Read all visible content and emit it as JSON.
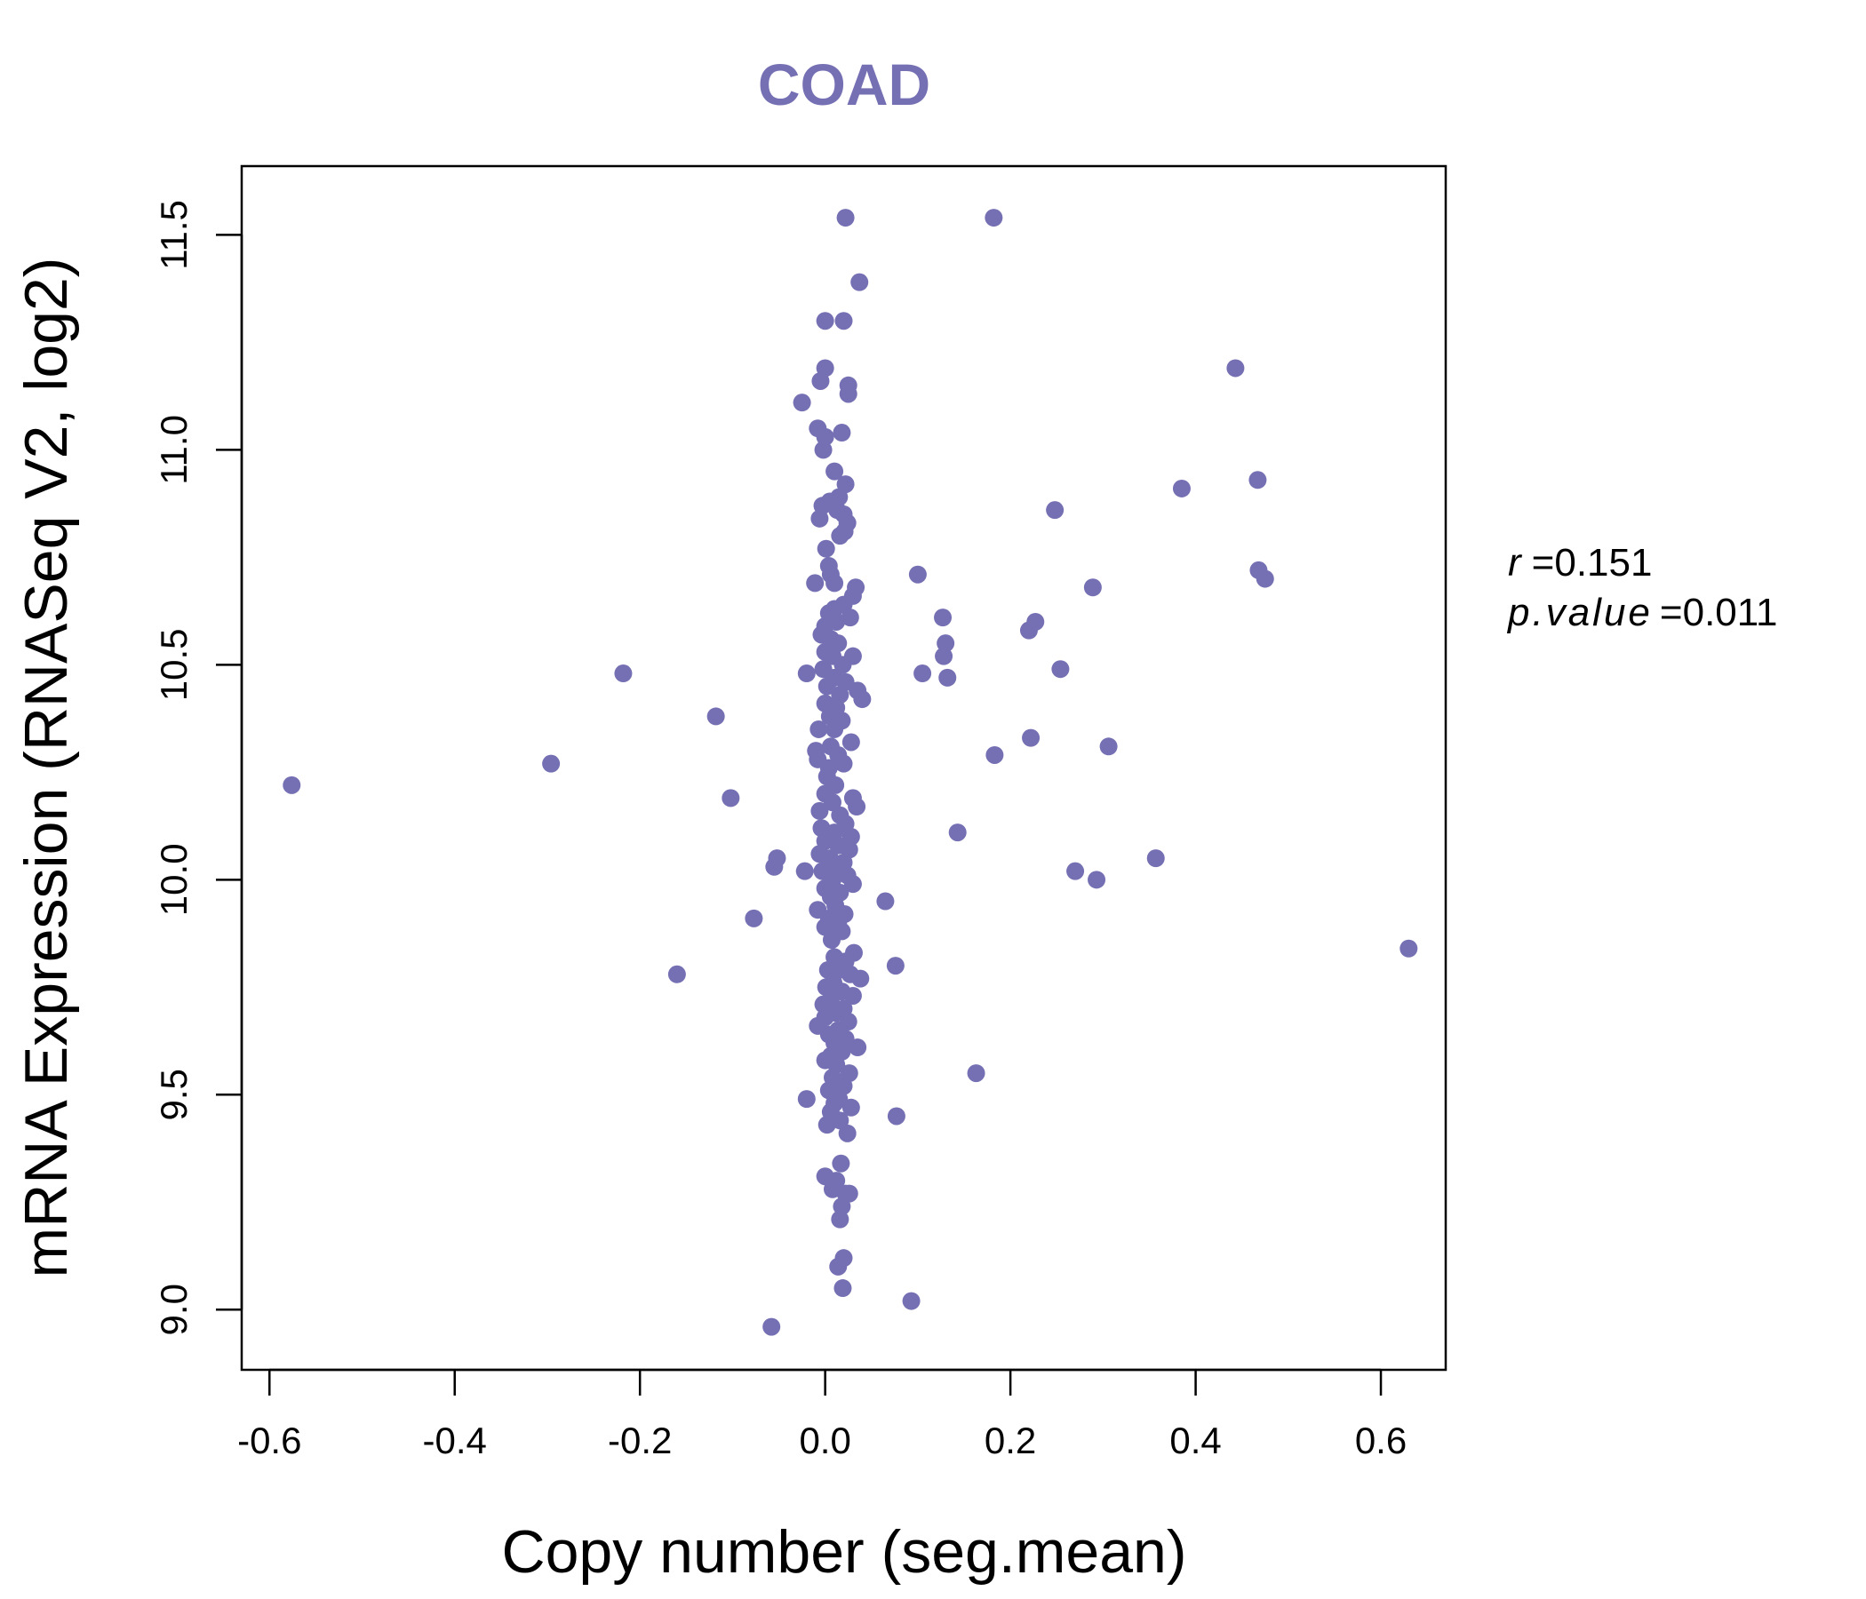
{
  "chart_data": {
    "type": "scatter",
    "title": "COAD",
    "xlabel": "Copy number (seg.mean)",
    "ylabel": "mRNA Expression (RNASeq V2, log2)",
    "xlim": [
      -0.63,
      0.67
    ],
    "ylim": [
      8.86,
      11.66
    ],
    "x_ticks": [
      "-0.6",
      "-0.4",
      "-0.2",
      "0.0",
      "0.2",
      "0.4",
      "0.6"
    ],
    "y_ticks": [
      "9.0",
      "9.5",
      "10.0",
      "10.5",
      "11.0",
      "11.5"
    ],
    "grid": false,
    "point_color": "#7570b3",
    "stats": {
      "r_symbol": "r",
      "r_value": "0.151",
      "p_symbol": "p.value",
      "p_value": "0.011"
    },
    "series": [
      {
        "points": [
          [
            -0.576,
            10.22
          ],
          [
            -0.296,
            10.27
          ],
          [
            -0.218,
            10.48
          ],
          [
            -0.118,
            10.38
          ],
          [
            -0.102,
            10.19
          ],
          [
            -0.077,
            9.91
          ],
          [
            -0.16,
            9.78
          ],
          [
            -0.052,
            10.05
          ],
          [
            -0.055,
            10.03
          ],
          [
            -0.058,
            8.96
          ],
          [
            -0.022,
            10.02
          ],
          [
            -0.02,
            9.49
          ],
          [
            -0.025,
            11.11
          ],
          [
            0.182,
            11.54
          ],
          [
            0.022,
            11.54
          ],
          [
            0.037,
            11.39
          ],
          [
            0.0,
            11.3
          ],
          [
            0.02,
            11.3
          ],
          [
            0.0,
            11.19
          ],
          [
            0.025,
            11.15
          ],
          [
            -0.005,
            11.16
          ],
          [
            0.025,
            11.13
          ],
          [
            -0.008,
            11.05
          ],
          [
            0.018,
            11.04
          ],
          [
            0.0,
            11.03
          ],
          [
            -0.002,
            11.0
          ],
          [
            0.01,
            10.95
          ],
          [
            0.022,
            10.92
          ],
          [
            0.015,
            10.89
          ],
          [
            0.005,
            10.88
          ],
          [
            -0.003,
            10.87
          ],
          [
            0.013,
            10.86
          ],
          [
            0.02,
            10.85
          ],
          [
            -0.006,
            10.84
          ],
          [
            0.024,
            10.83
          ],
          [
            0.021,
            10.81
          ],
          [
            0.016,
            10.8
          ],
          [
            0.001,
            10.77
          ],
          [
            0.004,
            10.73
          ],
          [
            0.006,
            10.71
          ],
          [
            -0.011,
            10.69
          ],
          [
            0.01,
            10.69
          ],
          [
            0.033,
            10.68
          ],
          [
            0.03,
            10.66
          ],
          [
            0.02,
            10.64
          ],
          [
            0.01,
            10.63
          ],
          [
            0.004,
            10.62
          ],
          [
            0.027,
            10.61
          ],
          [
            0.012,
            10.6
          ],
          [
            0.0,
            10.59
          ],
          [
            -0.004,
            10.57
          ],
          [
            0.006,
            10.56
          ],
          [
            0.014,
            10.55
          ],
          [
            0.0,
            10.53
          ],
          [
            0.008,
            10.52
          ],
          [
            0.03,
            10.52
          ],
          [
            0.019,
            10.5
          ],
          [
            -0.002,
            10.49
          ],
          [
            -0.02,
            10.48
          ],
          [
            0.01,
            10.47
          ],
          [
            0.022,
            10.46
          ],
          [
            0.002,
            10.45
          ],
          [
            0.035,
            10.44
          ],
          [
            0.04,
            10.42
          ],
          [
            0.016,
            10.43
          ],
          [
            0.0,
            10.41
          ],
          [
            0.012,
            10.4
          ],
          [
            0.005,
            10.38
          ],
          [
            0.018,
            10.37
          ],
          [
            0.01,
            10.35
          ],
          [
            -0.007,
            10.35
          ],
          [
            0.028,
            10.32
          ],
          [
            0.006,
            10.31
          ],
          [
            -0.01,
            10.3
          ],
          [
            0.014,
            10.29
          ],
          [
            -0.008,
            10.28
          ],
          [
            0.02,
            10.27
          ],
          [
            0.004,
            10.26
          ],
          [
            0.002,
            10.24
          ],
          [
            0.011,
            10.22
          ],
          [
            0.0,
            10.2
          ],
          [
            0.03,
            10.19
          ],
          [
            0.008,
            10.18
          ],
          [
            0.034,
            10.17
          ],
          [
            -0.006,
            10.16
          ],
          [
            0.016,
            10.15
          ],
          [
            0.022,
            10.13
          ],
          [
            -0.004,
            10.12
          ],
          [
            0.01,
            10.11
          ],
          [
            0.028,
            10.1
          ],
          [
            0.0,
            10.09
          ],
          [
            0.014,
            10.08
          ],
          [
            0.026,
            10.07
          ],
          [
            -0.006,
            10.06
          ],
          [
            0.005,
            10.05
          ],
          [
            0.02,
            10.04
          ],
          [
            0.012,
            10.03
          ],
          [
            -0.003,
            10.02
          ],
          [
            0.024,
            10.01
          ],
          [
            0.008,
            10.0
          ],
          [
            0.03,
            9.99
          ],
          [
            0.0,
            9.98
          ],
          [
            0.016,
            9.97
          ],
          [
            0.006,
            9.96
          ],
          [
            0.065,
            9.95
          ],
          [
            0.011,
            9.94
          ],
          [
            -0.008,
            9.93
          ],
          [
            0.021,
            9.92
          ],
          [
            0.004,
            9.91
          ],
          [
            0.014,
            9.9
          ],
          [
            0.0,
            9.89
          ],
          [
            0.018,
            9.88
          ],
          [
            0.007,
            9.86
          ],
          [
            0.031,
            9.83
          ],
          [
            0.01,
            9.82
          ],
          [
            0.022,
            9.81
          ],
          [
            0.003,
            9.79
          ],
          [
            0.076,
            9.8
          ],
          [
            0.015,
            9.79
          ],
          [
            0.027,
            9.78
          ],
          [
            0.038,
            9.77
          ],
          [
            0.009,
            9.76
          ],
          [
            0.001,
            9.75
          ],
          [
            0.018,
            9.74
          ],
          [
            0.03,
            9.73
          ],
          [
            0.006,
            9.72
          ],
          [
            -0.002,
            9.71
          ],
          [
            0.02,
            9.7
          ],
          [
            0.012,
            9.69
          ],
          [
            0.0,
            9.68
          ],
          [
            0.025,
            9.67
          ],
          [
            -0.008,
            9.66
          ],
          [
            0.014,
            9.65
          ],
          [
            0.004,
            9.64
          ],
          [
            0.022,
            9.63
          ],
          [
            0.01,
            9.62
          ],
          [
            0.035,
            9.61
          ],
          [
            0.018,
            9.6
          ],
          [
            0.006,
            9.59
          ],
          [
            0.0,
            9.58
          ],
          [
            0.012,
            9.57
          ],
          [
            0.026,
            9.55
          ],
          [
            0.163,
            9.55
          ],
          [
            0.008,
            9.54
          ],
          [
            0.02,
            9.52
          ],
          [
            0.004,
            9.51
          ],
          [
            0.015,
            9.49
          ],
          [
            0.01,
            9.48
          ],
          [
            0.028,
            9.47
          ],
          [
            0.006,
            9.46
          ],
          [
            0.077,
            9.45
          ],
          [
            0.016,
            9.44
          ],
          [
            0.002,
            9.43
          ],
          [
            0.024,
            9.41
          ],
          [
            0.017,
            9.34
          ],
          [
            0.0,
            9.31
          ],
          [
            0.012,
            9.3
          ],
          [
            0.008,
            9.28
          ],
          [
            0.022,
            9.27
          ],
          [
            0.026,
            9.27
          ],
          [
            0.018,
            9.24
          ],
          [
            0.016,
            9.21
          ],
          [
            0.02,
            9.12
          ],
          [
            0.014,
            9.1
          ],
          [
            0.019,
            9.05
          ],
          [
            0.093,
            9.02
          ],
          [
            0.1,
            10.71
          ],
          [
            0.105,
            10.48
          ],
          [
            0.127,
            10.61
          ],
          [
            0.13,
            10.55
          ],
          [
            0.128,
            10.52
          ],
          [
            0.132,
            10.47
          ],
          [
            0.143,
            10.11
          ],
          [
            0.183,
            10.29
          ],
          [
            0.22,
            10.58
          ],
          [
            0.227,
            10.6
          ],
          [
            0.222,
            10.33
          ],
          [
            0.248,
            10.86
          ],
          [
            0.254,
            10.49
          ],
          [
            0.27,
            10.02
          ],
          [
            0.289,
            10.68
          ],
          [
            0.293,
            10.0
          ],
          [
            0.306,
            10.31
          ],
          [
            0.357,
            10.05
          ],
          [
            0.385,
            10.91
          ],
          [
            0.443,
            11.19
          ],
          [
            0.467,
            10.93
          ],
          [
            0.468,
            10.72
          ],
          [
            0.475,
            10.7
          ],
          [
            0.63,
            9.84
          ]
        ]
      }
    ]
  }
}
